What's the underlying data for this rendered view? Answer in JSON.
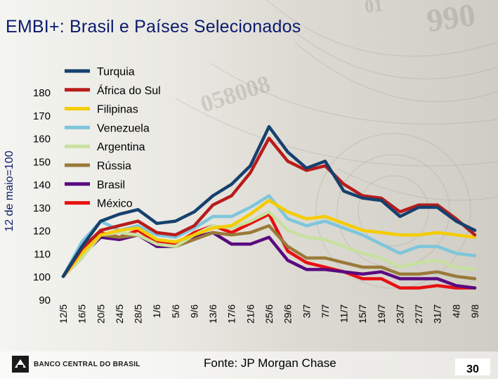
{
  "slide": {
    "title": "EMBI+: Brasil e Países Selecionados",
    "source": "Fonte: JP Morgan Chase",
    "page_number": "30",
    "bank_name": "BANCO CENTRAL DO BRASIL"
  },
  "chart_data": {
    "type": "line",
    "title": "EMBI+: Brasil e Países Selecionados",
    "xlabel": "",
    "ylabel": "12 de maio=100",
    "ylim": [
      90,
      180
    ],
    "yticks": [
      90,
      100,
      110,
      120,
      130,
      140,
      150,
      160,
      170,
      180
    ],
    "categories": [
      "12/5",
      "16/5",
      "20/5",
      "24/5",
      "28/5",
      "1/6",
      "5/6",
      "9/6",
      "13/6",
      "17/6",
      "21/6",
      "25/6",
      "29/6",
      "3/7",
      "7/7",
      "11/7",
      "15/7",
      "19/7",
      "23/7",
      "27/7",
      "31/7",
      "4/8",
      "9/8"
    ],
    "legend_position": "top-left",
    "series": [
      {
        "name": "Turquia",
        "color": "#16406e",
        "values": [
          100,
          113,
          124,
          127,
          129,
          123,
          124,
          128,
          135,
          140,
          148,
          165,
          154,
          147,
          150,
          137,
          134,
          133,
          126,
          130,
          130,
          124,
          120
        ]
      },
      {
        "name": "África do Sul",
        "color": "#b81c1c",
        "values": [
          100,
          112,
          120,
          122,
          124,
          119,
          118,
          122,
          131,
          135,
          145,
          160,
          150,
          146,
          148,
          140,
          135,
          134,
          128,
          131,
          131,
          125,
          118
        ]
      },
      {
        "name": "Filipinas",
        "color": "#f5cc00",
        "values": [
          100,
          110,
          118,
          120,
          121,
          116,
          115,
          118,
          121,
          122,
          127,
          133,
          128,
          125,
          126,
          123,
          120,
          119,
          118,
          118,
          119,
          118,
          117
        ]
      },
      {
        "name": "Venezuela",
        "color": "#7ec6dc",
        "values": [
          100,
          115,
          124,
          120,
          122,
          118,
          117,
          121,
          126,
          126,
          130,
          135,
          125,
          122,
          124,
          121,
          118,
          114,
          110,
          113,
          113,
          110,
          109
        ]
      },
      {
        "name": "Argentina",
        "color": "#c8e0a0",
        "values": [
          100,
          108,
          118,
          119,
          118,
          114,
          113,
          118,
          122,
          121,
          124,
          128,
          120,
          117,
          116,
          113,
          110,
          108,
          104,
          106,
          107,
          104,
          103
        ]
      },
      {
        "name": "Rússia",
        "color": "#9a7a3a",
        "values": [
          100,
          110,
          118,
          117,
          118,
          114,
          113,
          116,
          119,
          118,
          119,
          122,
          113,
          108,
          108,
          106,
          104,
          104,
          101,
          101,
          102,
          100,
          99
        ]
      },
      {
        "name": "Brasil",
        "color": "#5a0a80",
        "values": [
          100,
          109,
          117,
          116,
          118,
          113,
          113,
          117,
          119,
          114,
          114,
          117,
          107,
          103,
          103,
          102,
          101,
          102,
          99,
          99,
          99,
          96,
          95
        ]
      },
      {
        "name": "México",
        "color": "#e81010",
        "values": [
          100,
          108,
          119,
          117,
          120,
          115,
          114,
          119,
          122,
          119,
          123,
          127,
          111,
          106,
          104,
          102,
          99,
          99,
          95,
          95,
          96,
          95,
          95
        ]
      }
    ]
  }
}
